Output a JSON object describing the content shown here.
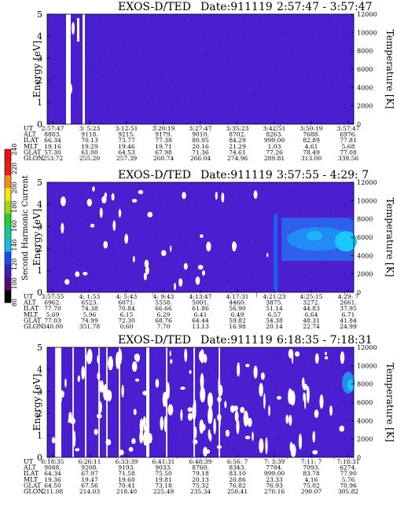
{
  "chart_data": [
    {
      "type": "heatmap",
      "title": "EXOS-D/TED",
      "date_label": "Date:911119",
      "time_range": "2:57:47 - 3:57:47",
      "ylabel": "Energy [eV]",
      "ylabel_right": "Temperature [K]",
      "ylim": [
        0,
        5
      ],
      "y_ticks": [
        "0",
        "1",
        "2",
        "3",
        "4",
        "5"
      ],
      "right_ylim": [
        0,
        12000
      ],
      "right_ticks": [
        "0",
        "2000",
        "4000",
        "6000",
        "8000",
        "10000",
        "12000"
      ],
      "row_labels": [
        "UT",
        "ALT",
        "ILAT",
        "MLT",
        "GLAT",
        "GLON"
      ],
      "columns": [
        [
          "2:57:47",
          "8883.",
          "66.34",
          "19.16",
          "57.30",
          "253.72"
        ],
        [
          "3: 5:23",
          "9118.",
          "70.13",
          "19.29",
          "61.00",
          "255.20"
        ],
        [
          "3:12:51",
          "9215.",
          "73.77",
          "19.46",
          "64.53",
          "257.39"
        ],
        [
          "3:20:19",
          "9179.",
          "77.38",
          "19.71",
          "67.98",
          "260.74"
        ],
        [
          "3:27:47",
          "9010.",
          "80.95",
          "20.16",
          "71.36",
          "266.04"
        ],
        [
          "3:35:23",
          "8702.",
          "84.29",
          "21.29",
          "74.61",
          "274.96"
        ],
        [
          "3:42:51",
          "8263.",
          "999.00",
          "1.03",
          "77.26",
          "289.81"
        ],
        [
          "3:50:19",
          "7688.",
          "82.89",
          "4.61",
          "78.49",
          "313.00"
        ],
        [
          "3:57:47",
          "6976.",
          "77.81",
          "5.68",
          "77.08",
          "339.56"
        ]
      ],
      "dominant_color": "#4b1fd0",
      "gap_color": "#ffffff"
    },
    {
      "type": "heatmap",
      "title": "EXOS-D/TED",
      "date_label": "Date:911119",
      "time_range": "3:57:55 - 4:29: 7",
      "ylabel": "Energy [eV]",
      "ylabel_right": "Temperature [K]",
      "ylim": [
        0,
        5
      ],
      "y_ticks": [
        "0",
        "1",
        "2",
        "3",
        "4",
        "5"
      ],
      "right_ylim": [
        0,
        12000
      ],
      "right_ticks": [
        "0",
        "2000",
        "4000",
        "6000",
        "8000",
        "10000",
        "12000"
      ],
      "row_labels": [
        "UT",
        "ALT",
        "ILAT",
        "MLT",
        "GLAT",
        "GLON"
      ],
      "columns": [
        [
          "3:57:55",
          "6962.",
          "77.70",
          "5.69",
          "77.03",
          "340.00"
        ],
        [
          "4: 1:53",
          "6523.",
          "74.38",
          "5.96",
          "74.99",
          "351.78"
        ],
        [
          "4: 5:43",
          "6071.",
          "70.84",
          "6.15",
          "72.30",
          "0.60"
        ],
        [
          "4: 9:43",
          "5558.",
          "66.66",
          "6.29",
          "68.76",
          "7.70"
        ],
        [
          "4:13:47",
          "5001.",
          "61.86",
          "6.41",
          "64.44",
          "13.13"
        ],
        [
          "4:17:31",
          "4460.",
          "56.90",
          "6.49",
          "59.82",
          "16.98"
        ],
        [
          "4:21:23",
          "3875.",
          "51.14",
          "6.57",
          "54.38",
          "20.14"
        ],
        [
          "4:25:15",
          "3272.",
          "44.83",
          "6.64",
          "48.31",
          "22.74"
        ],
        [
          "4:29: 7",
          "2661.",
          "37.95",
          "6.71",
          "41.84",
          "24.99"
        ]
      ],
      "dominant_color": "#4b1fd0",
      "hot_color": "#19c8ff",
      "gap_color": "#ffffff"
    },
    {
      "type": "heatmap",
      "title": "EXOS-D/TED",
      "date_label": "Date:911119",
      "time_range": "6:18:35 - 7:18:31",
      "ylabel": "Energy [eV]",
      "ylabel_right": "Temperature [K]",
      "ylim": [
        0,
        5
      ],
      "y_ticks": [
        "0",
        "1",
        "2",
        "3",
        "4",
        "5"
      ],
      "right_ylim": [
        0,
        12000
      ],
      "right_ticks": [
        "0",
        "2000",
        "4000",
        "6000",
        "8000",
        "10000",
        "12000"
      ],
      "row_labels": [
        "UT",
        "ALT",
        "ILAT",
        "MLT",
        "GLAT",
        "GLON"
      ],
      "columns": [
        [
          "6:18:35",
          "9088.",
          "64.34",
          "19.36",
          "64.50",
          "211.08"
        ],
        [
          "6:26:11",
          "9208.",
          "67.97",
          "19.47",
          "67.56",
          "214.03"
        ],
        [
          "6:33:39",
          "9193.",
          "71.58",
          "19.60",
          "70.41",
          "218.40"
        ],
        [
          "6:41:31",
          "9033.",
          "75.50",
          "19.81",
          "73.18",
          "225.49"
        ],
        [
          "6:48:39",
          "8760.",
          "79.18",
          "20.13",
          "75.32",
          "235.34"
        ],
        [
          "6:56: 7",
          "8343.",
          "83.10",
          "20.86",
          "76.82",
          "250.41"
        ],
        [
          "7: 3:39",
          "7784.",
          "999.00",
          "23.33",
          "76.93",
          "270.16"
        ],
        [
          "7:11: 7",
          "7093.",
          "83.78",
          "4.16",
          "75.02",
          "290.07"
        ],
        [
          "7:18:31",
          "6274.",
          "77.90",
          "5.76",
          "70.96",
          "305.82"
        ]
      ],
      "dominant_color": "#4b1fd0",
      "hot_color": "#19c8ff",
      "gap_color": "#ffffff"
    }
  ],
  "colorbar": {
    "label": "Second Harmonic Current",
    "ticks": [
      "80",
      "100",
      "120",
      "140",
      "160",
      "180",
      "200",
      "220",
      "240"
    ],
    "colors": [
      "#000000",
      "#5a0a6e",
      "#3a1fb4",
      "#1a4cf0",
      "#17b9e6",
      "#14c8a0",
      "#22d02a",
      "#a0d814",
      "#f2e61a",
      "#f09018",
      "#e42018",
      "#ee1010"
    ]
  }
}
